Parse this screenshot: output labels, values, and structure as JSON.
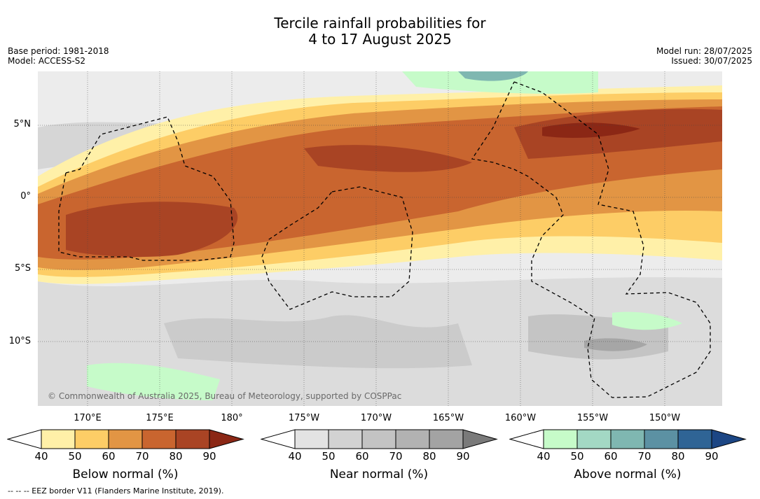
{
  "title": {
    "line1": "Tercile rainfall probabilities for",
    "line2": "4 to 17 August 2025"
  },
  "meta": {
    "base_period": "Base period: 1981-2018",
    "model": "Model: ACCESS-S2",
    "model_run": "Model run: 28/07/2025",
    "issued": "Issued: 30/07/2025"
  },
  "map": {
    "lat_labels": [
      "5°N",
      "0°",
      "5°S",
      "10°S"
    ],
    "lon_labels": [
      "170°E",
      "175°E",
      "180°",
      "175°W",
      "170°W",
      "165°W",
      "160°W",
      "155°W",
      "150°W"
    ],
    "credit": "© Commonwealth of Australia 2025, Bureau of Meteorology, supported by COSPPac",
    "grid": "on",
    "eez_outlines": "dashed black"
  },
  "colorbars": [
    {
      "title": "Below normal (%)",
      "ticks": [
        "40",
        "50",
        "60",
        "70",
        "80",
        "90"
      ],
      "colors": [
        "#fff0a8",
        "#fdcd66",
        "#e29544",
        "#c9652f",
        "#a94424",
        "#8b2715"
      ]
    },
    {
      "title": "Near normal (%)",
      "ticks": [
        "40",
        "50",
        "60",
        "70",
        "80",
        "90"
      ],
      "colors": [
        "#e3e3e3",
        "#d2d2d2",
        "#c3c3c3",
        "#b2b2b2",
        "#a3a3a3",
        "#7a7a7a"
      ]
    },
    {
      "title": "Above normal (%)",
      "ticks": [
        "40",
        "50",
        "60",
        "70",
        "80",
        "90"
      ],
      "colors": [
        "#c6fbc9",
        "#a3d8c4",
        "#7fb7b1",
        "#5c91a3",
        "#2f6495",
        "#1c4684"
      ]
    }
  ],
  "footnote": "--  --  -- EEZ border V11 (Flanders Marine Institute, 2019)."
}
